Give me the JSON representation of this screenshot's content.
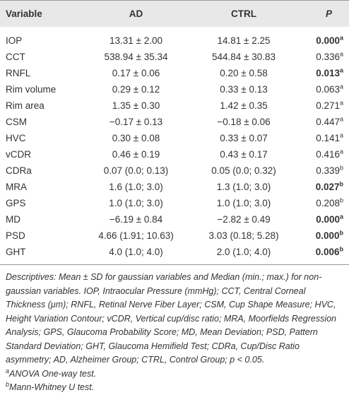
{
  "table": {
    "headers": [
      "Variable",
      "AD",
      "CTRL",
      "P"
    ],
    "rows": [
      {
        "variable": "IOP",
        "ad": "13.31 ± 2.00",
        "ctrl": "14.81 ± 2.25",
        "p": "0.000",
        "note": "a",
        "bold": true
      },
      {
        "variable": "CCT",
        "ad": "538.94 ± 35.34",
        "ctrl": "544.84 ± 30.83",
        "p": "0.336",
        "note": "a",
        "bold": false
      },
      {
        "variable": "RNFL",
        "ad": "0.17 ± 0.06",
        "ctrl": "0.20 ± 0.58",
        "p": "0.013",
        "note": "a",
        "bold": true
      },
      {
        "variable": "Rim volume",
        "ad": "0.29 ± 0.12",
        "ctrl": "0.33 ± 0.13",
        "p": "0.063",
        "note": "a",
        "bold": false
      },
      {
        "variable": "Rim area",
        "ad": "1.35 ± 0.30",
        "ctrl": "1.42 ± 0.35",
        "p": "0.271",
        "note": "a",
        "bold": false
      },
      {
        "variable": "CSM",
        "ad": "−0.17 ± 0.13",
        "ctrl": "−0.18 ± 0.06",
        "p": "0.447",
        "note": "a",
        "bold": false
      },
      {
        "variable": "HVC",
        "ad": "0.30 ± 0.08",
        "ctrl": "0.33 ± 0.07",
        "p": "0.141",
        "note": "a",
        "bold": false
      },
      {
        "variable": "vCDR",
        "ad": "0.46 ± 0.19",
        "ctrl": "0.43 ± 0.17",
        "p": "0.416",
        "note": "a",
        "bold": false
      },
      {
        "variable": "CDRa",
        "ad": "0.07 (0.0; 0.13)",
        "ctrl": "0.05 (0.0; 0.32)",
        "p": "0.339",
        "note": "b",
        "bold": false
      },
      {
        "variable": "MRA",
        "ad": "1.6 (1.0; 3.0)",
        "ctrl": "1.3 (1.0; 3.0)",
        "p": "0.027",
        "note": "b",
        "bold": true
      },
      {
        "variable": "GPS",
        "ad": "1.0 (1.0; 3.0)",
        "ctrl": "1.0 (1.0; 3.0)",
        "p": "0.208",
        "note": "b",
        "bold": false
      },
      {
        "variable": "MD",
        "ad": "−6.19 ± 0.84",
        "ctrl": "−2.82 ± 0.49",
        "p": "0.000",
        "note": "a",
        "bold": true
      },
      {
        "variable": "PSD",
        "ad": "4.66 (1.91; 10.63)",
        "ctrl": "3.03 (0.18; 5.28)",
        "p": "0.000",
        "note": "b",
        "bold": true
      },
      {
        "variable": "GHT",
        "ad": "4.0 (1.0; 4.0)",
        "ctrl": "2.0 (1.0; 4.0)",
        "p": "0.006",
        "note": "b",
        "bold": true
      }
    ]
  },
  "footnotes": {
    "description": "Descriptives: Mean ± SD for gaussian variables and Median (min.; max.) for non-gaussian variables. IOP, Intraocular Pressure (mmHg); CCT, Central Corneal Thickness (μm); RNFL, Retinal Nerve Fiber Layer; CSM, Cup Shape Measure; HVC, Height Variation Contour; vCDR, Vertical cup/disc ratio; MRA, Moorfields Regression Analysis; GPS, Glaucoma Probability Score; MD, Mean Deviation; PSD, Pattern Standard Deviation; GHT, Glaucoma Hemifield Test; CDRa, Cup/Disc Ratio asymmetry; AD, Alzheimer Group; CTRL, Control Group; p < 0.05.",
    "notes": [
      {
        "mark": "a",
        "text": "ANOVA One-way test."
      },
      {
        "mark": "b",
        "text": "Mann-Whitney U test."
      }
    ]
  }
}
